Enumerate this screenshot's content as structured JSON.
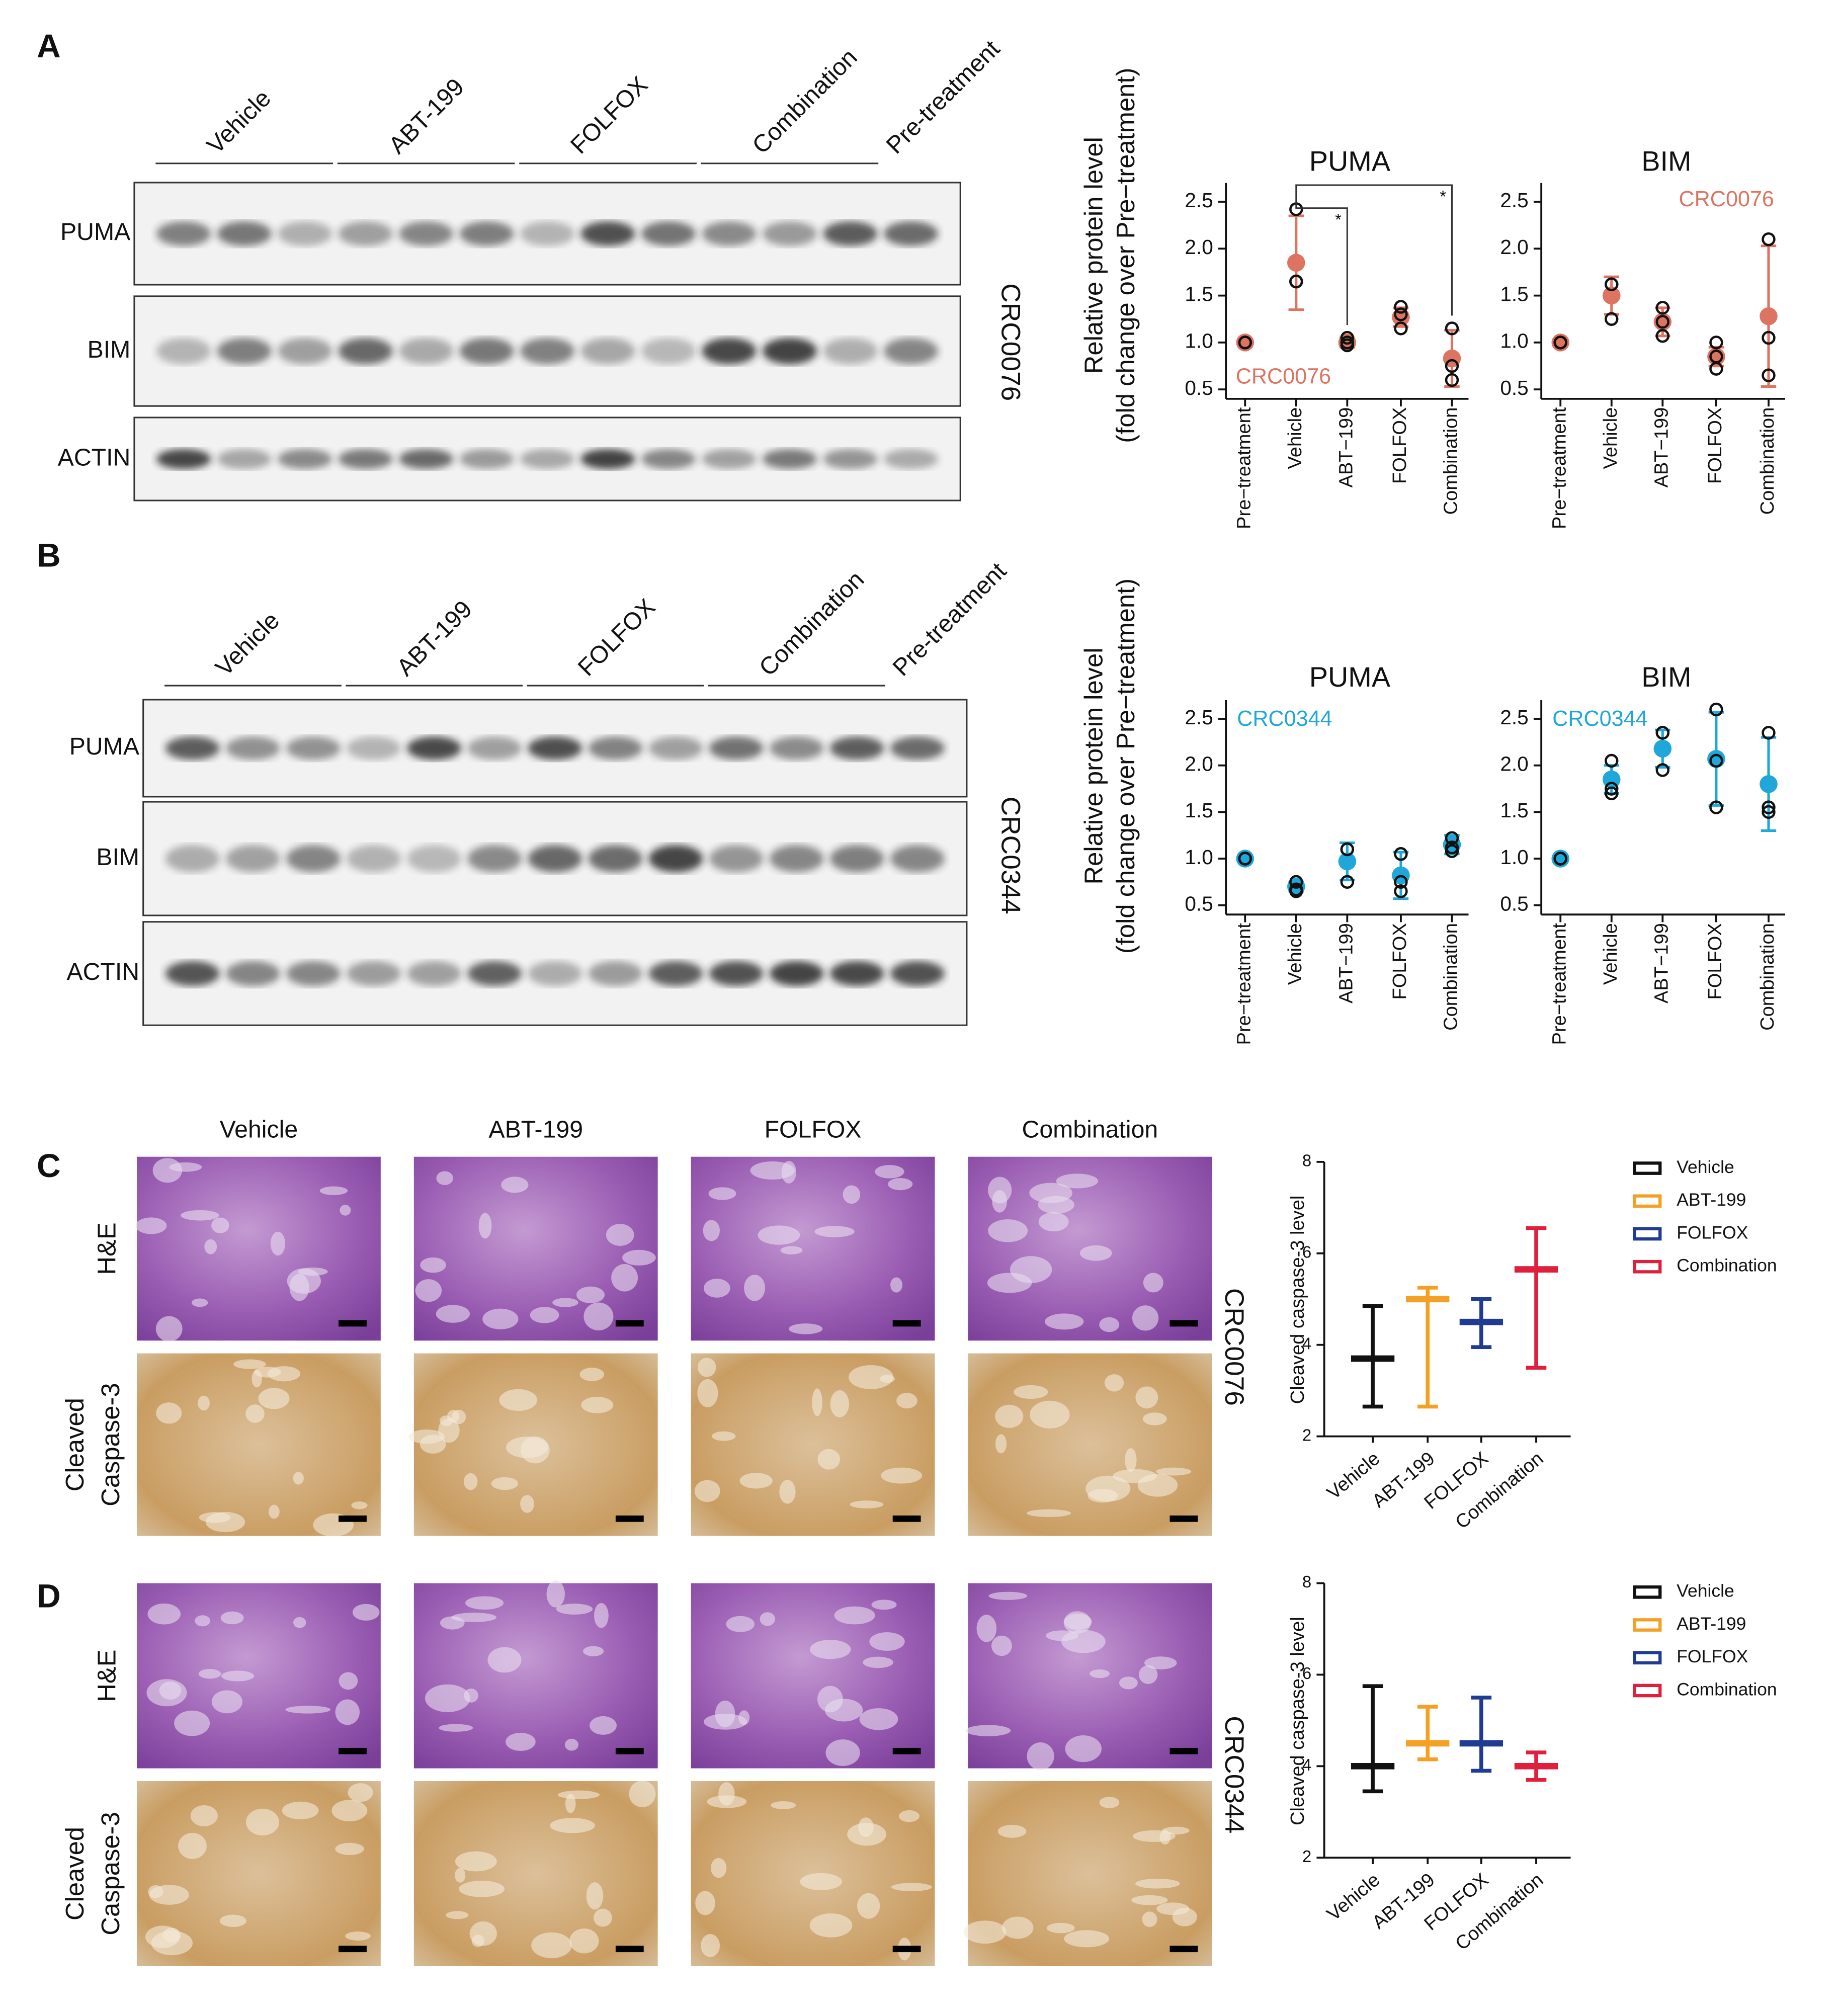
{
  "blots": [
    {
      "label": "A",
      "groups": [
        "Vehicle",
        "ABT-199",
        "FOLFOX",
        "Combination",
        "Pre-treatment"
      ],
      "rows": [
        "PUMA",
        "BIM",
        "ACTIN"
      ],
      "model": "CRC0076"
    },
    {
      "label": "B",
      "groups": [
        "Vehicle",
        "ABT-199",
        "FOLFOX",
        "Combination",
        "Pre-treatment"
      ],
      "rows": [
        "PUMA",
        "BIM",
        "ACTIN"
      ],
      "model": "CRC0344"
    }
  ],
  "histology": {
    "columns": [
      "Vehicle",
      "ABT-199",
      "FOLFOX",
      "Combination"
    ],
    "rows": [
      [
        "H&E"
      ],
      [
        "Cleaved",
        "Caspase-3"
      ]
    ],
    "panels": [
      {
        "label": "C",
        "model": "CRC0076"
      },
      {
        "label": "D",
        "model": "CRC0344"
      }
    ]
  },
  "chart_data": [
    {
      "type": "dot",
      "title": "PUMA",
      "ylabel": [
        "Relative protein level",
        "(fold change over Pre−treatment)"
      ],
      "annotation": "CRC0076",
      "color": "#dc7461",
      "categories": [
        "Pre−treatment",
        "Vehicle",
        "ABT−199",
        "FOLFOX",
        "Combination"
      ],
      "mean": [
        1.0,
        1.85,
        1.0,
        1.27,
        0.83
      ],
      "sd": [
        0,
        0.5,
        0.05,
        0.1,
        0.3
      ],
      "points": [
        [
          1,
          1,
          1
        ],
        [
          2.42,
          1.65,
          1.65
        ],
        [
          1.05,
          0.97,
          1.0
        ],
        [
          1.38,
          1.3,
          1.15
        ],
        [
          1.15,
          0.75,
          0.6
        ]
      ],
      "significance": [
        {
          "from": 1,
          "to": 2,
          "label": "*"
        },
        {
          "from": 1,
          "to": 4,
          "label": "*"
        }
      ],
      "ylim": [
        0.4,
        2.7
      ],
      "yticks": [
        0.5,
        {
          "value": 1,
          "label": "1.0"
        },
        1.5,
        {
          "value": 2,
          "label": "2.0"
        },
        2.5
      ]
    },
    {
      "type": "dot",
      "title": "BIM",
      "annotation": "CRC0076",
      "color": "#dc7461",
      "categories": [
        "Pre−treatment",
        "Vehicle",
        "ABT−199",
        "FOLFOX",
        "Combination"
      ],
      "mean": [
        1.0,
        1.5,
        1.22,
        0.85,
        1.28
      ],
      "sd": [
        0,
        0.2,
        0.15,
        0.1,
        0.75
      ],
      "points": [
        [
          1,
          1,
          1
        ],
        [
          1.62,
          1.62,
          1.25
        ],
        [
          1.37,
          1.22,
          1.07
        ],
        [
          1.0,
          0.85,
          0.72
        ],
        [
          2.1,
          1.05,
          0.65
        ]
      ],
      "ylim": [
        0.4,
        2.7
      ],
      "yticks": [
        0.5,
        {
          "value": 1,
          "label": "1.0"
        },
        1.5,
        {
          "value": 2,
          "label": "2.0"
        },
        2.5
      ]
    },
    {
      "type": "dot",
      "title": "PUMA",
      "ylabel": [
        "Relative protein level",
        "(fold change over Pre−treatment)"
      ],
      "annotation": "CRC0344",
      "color": "#1ea7d8",
      "categories": [
        "Pre−treatment",
        "Vehicle",
        "ABT−199",
        "FOLFOX",
        "Combination"
      ],
      "mean": [
        1.0,
        0.7,
        0.97,
        0.82,
        1.15
      ],
      "sd": [
        0,
        0.05,
        0.2,
        0.25,
        0.1
      ],
      "points": [
        [
          1,
          1,
          1
        ],
        [
          0.75,
          0.67,
          0.65
        ],
        [
          1.1,
          1.1,
          0.75
        ],
        [
          1.05,
          0.75,
          0.65
        ],
        [
          1.22,
          1.12,
          1.08
        ]
      ],
      "ylim": [
        0.4,
        2.7
      ],
      "yticks": [
        0.5,
        {
          "value": 1,
          "label": "1.0"
        },
        1.5,
        {
          "value": 2,
          "label": "2.0"
        },
        2.5
      ]
    },
    {
      "type": "dot",
      "title": "BIM",
      "annotation": "CRC0344",
      "color": "#1ea7d8",
      "categories": [
        "Pre−treatment",
        "Vehicle",
        "ABT−199",
        "FOLFOX",
        "Combination"
      ],
      "mean": [
        1.0,
        1.85,
        2.18,
        2.07,
        1.8
      ],
      "sd": [
        0,
        0.15,
        0.2,
        0.5,
        0.5
      ],
      "points": [
        [
          1,
          1,
          1
        ],
        [
          2.05,
          1.75,
          1.7
        ],
        [
          2.35,
          2.35,
          1.95
        ],
        [
          2.6,
          2.05,
          1.55
        ],
        [
          2.35,
          1.55,
          1.5
        ]
      ],
      "ylim": [
        0.4,
        2.7
      ],
      "yticks": [
        0.5,
        {
          "value": 1,
          "label": "1.0"
        },
        1.5,
        {
          "value": 2,
          "label": "2.0"
        },
        2.5
      ]
    },
    {
      "type": "box",
      "ylabel": "Cleaved caspase-3 level",
      "categories": [
        "Vehicle",
        "ABT-199",
        "FOLFOX",
        "Combination"
      ],
      "colors": [
        "#111111",
        "#f3a024",
        "#1f3b94",
        "#e01f3d"
      ],
      "min": [
        2.65,
        2.65,
        3.95,
        3.5
      ],
      "median": [
        3.7,
        5.0,
        4.5,
        5.65
      ],
      "max": [
        4.85,
        5.25,
        5.0,
        6.55
      ],
      "ylim": [
        2,
        8
      ],
      "yticks": [
        2,
        4,
        6,
        8
      ],
      "legend": "right"
    },
    {
      "type": "box",
      "ylabel": "Cleaved caspase-3 level",
      "categories": [
        "Vehicle",
        "ABT-199",
        "FOLFOX",
        "Combination"
      ],
      "colors": [
        "#111111",
        "#f3a024",
        "#1f3b94",
        "#e01f3d"
      ],
      "min": [
        3.45,
        4.15,
        3.9,
        3.7
      ],
      "median": [
        4.0,
        4.5,
        4.5,
        4.0
      ],
      "max": [
        5.75,
        5.3,
        5.5,
        4.3
      ],
      "ylim": [
        2,
        8
      ],
      "yticks": [
        2,
        4,
        6,
        8
      ],
      "legend": "right"
    }
  ]
}
